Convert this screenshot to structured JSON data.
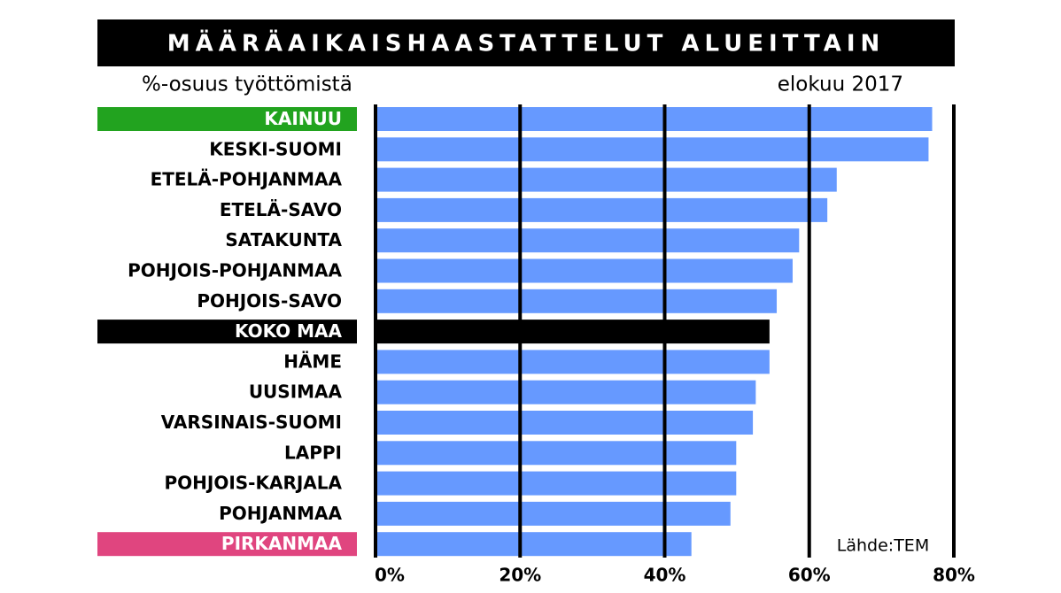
{
  "chart_data": {
    "type": "bar",
    "orientation": "horizontal",
    "title": "MÄÄRÄAIKAISHAASTATTELUT ALUEITTAIN",
    "subtitle": "%-osuus työttömistä",
    "date": "elokuu 2017",
    "source": "Lähde:TEM",
    "categories": [
      "KAINUU",
      "KESKI-SUOMI",
      "ETELÄ-POHJANMAA",
      "ETELÄ-SAVO",
      "SATAKUNTA",
      "POHJOIS-POHJANMAA",
      "POHJOIS-SAVO",
      "KOKO MAA",
      "HÄME",
      "UUSIMAA",
      "VARSINAIS-SUOMI",
      "LAPPI",
      "POHJOIS-KARJALA",
      "POHJANMAA",
      "PIRKANMAA"
    ],
    "values": [
      77.0,
      76.5,
      63.8,
      62.5,
      58.6,
      57.7,
      55.5,
      54.5,
      54.5,
      52.6,
      52.2,
      49.9,
      49.9,
      49.1,
      43.7
    ],
    "color": "#6699ff",
    "bar_colors": [
      null,
      null,
      null,
      null,
      null,
      null,
      null,
      "#000000",
      null,
      null,
      null,
      null,
      null,
      null,
      null
    ],
    "label_backgrounds": [
      "#22a31f",
      null,
      null,
      null,
      null,
      null,
      null,
      "#000000",
      null,
      null,
      null,
      null,
      null,
      null,
      "#e0457f"
    ],
    "xlim": [
      0,
      80
    ],
    "xticks": [
      {
        "value": 0,
        "label": "0%"
      },
      {
        "value": 20,
        "label": "20%"
      },
      {
        "value": 40,
        "label": "40%"
      },
      {
        "value": 60,
        "label": "60%"
      },
      {
        "value": 80,
        "label": "80%"
      }
    ],
    "grid": true
  }
}
